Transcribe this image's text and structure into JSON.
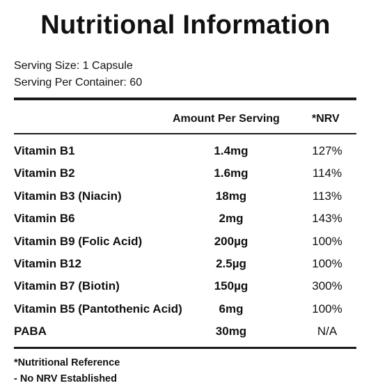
{
  "title": "Nutritional Information",
  "serving": {
    "size": "Serving Size: 1 Capsule",
    "per_container": "Serving Per Container: 60"
  },
  "columns": {
    "amount": "Amount Per Serving",
    "nrv": "*NRV"
  },
  "rows": [
    {
      "name": "Vitamin B1",
      "amount": "1.4mg",
      "nrv": "127%"
    },
    {
      "name": "Vitamin B2",
      "amount": "1.6mg",
      "nrv": "114%"
    },
    {
      "name": "Vitamin B3 (Niacin)",
      "amount": "18mg",
      "nrv": "113%"
    },
    {
      "name": "Vitamin B6",
      "amount": "2mg",
      "nrv": "143%"
    },
    {
      "name": "Vitamin B9 (Folic Acid)",
      "amount": "200µg",
      "nrv": "100%"
    },
    {
      "name": "Vitamin B12",
      "amount": "2.5µg",
      "nrv": "100%"
    },
    {
      "name": "Vitamin B7 (Biotin)",
      "amount": "150µg",
      "nrv": "300%"
    },
    {
      "name": "Vitamin B5 (Pantothenic Acid)",
      "amount": "6mg",
      "nrv": "100%"
    },
    {
      "name": "PABA",
      "amount": "30mg",
      "nrv": "N/A"
    }
  ],
  "footnotes": {
    "reference": "*Nutritional Reference",
    "no_nrv": "- No NRV Established"
  }
}
